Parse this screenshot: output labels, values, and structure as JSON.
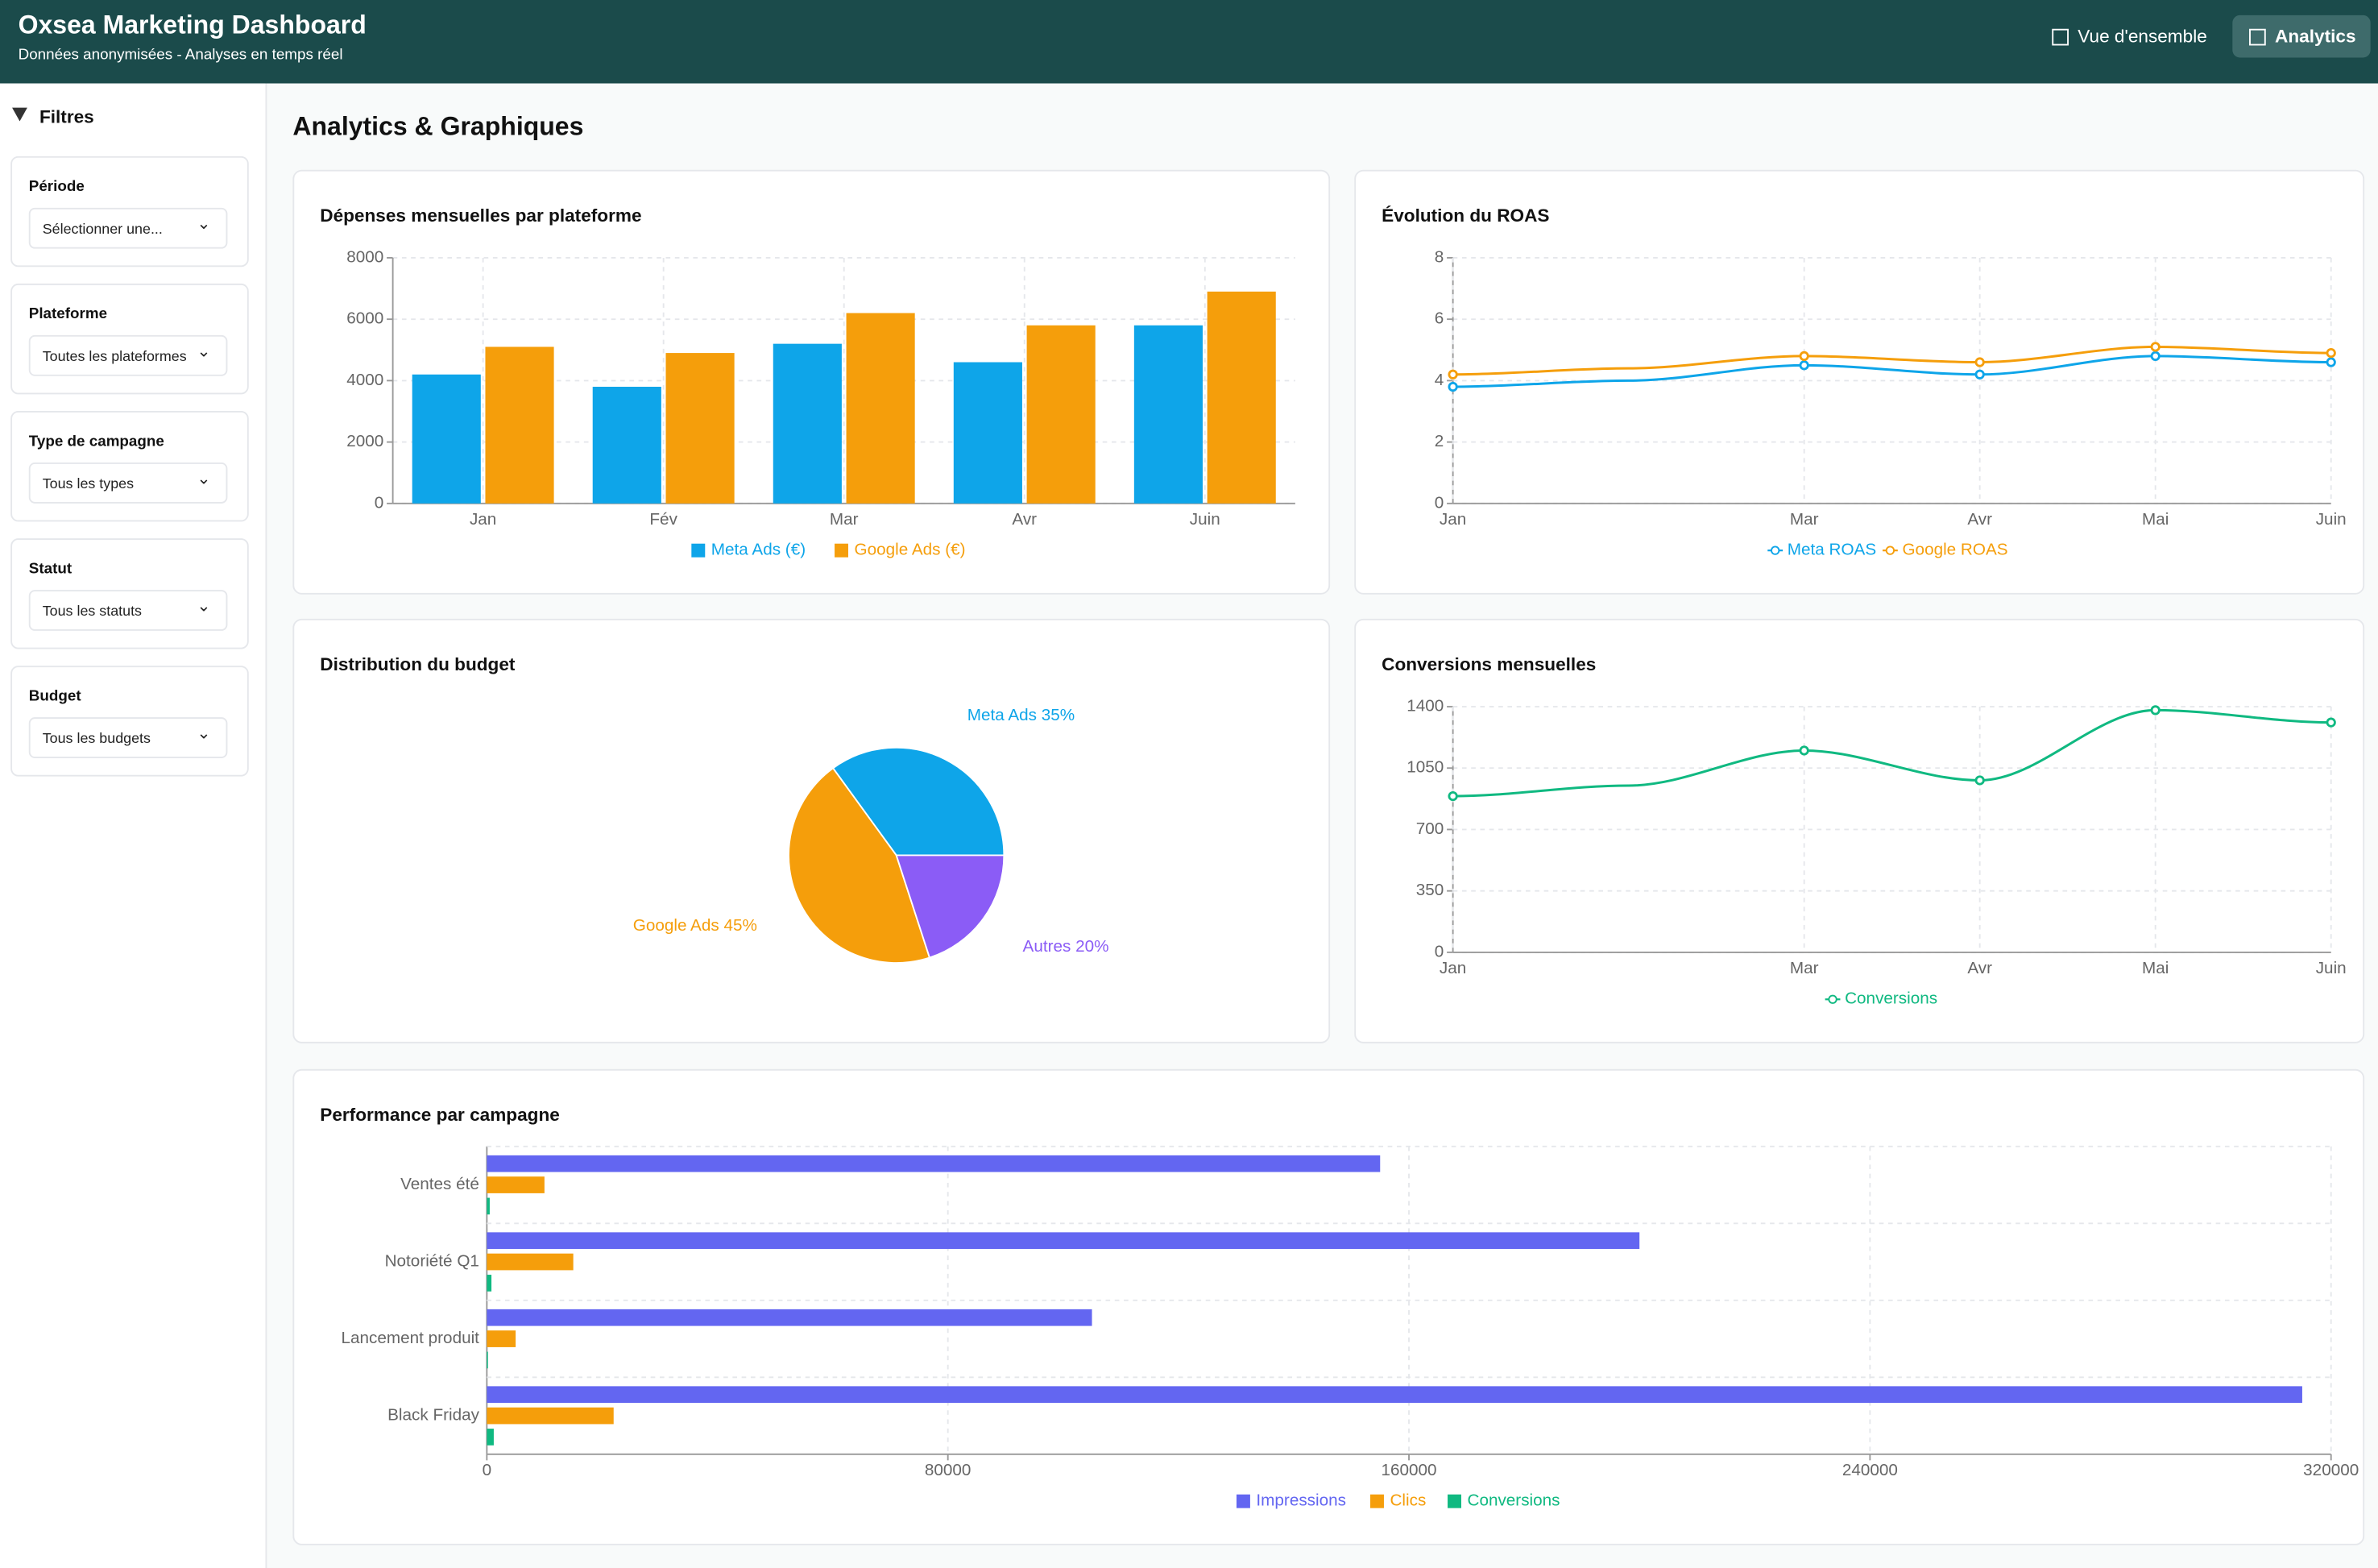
{
  "header": {
    "title": "Oxsea Marketing Dashboard",
    "subtitle": "Données anonymisées - Analyses en temps réel",
    "tabs": [
      "Vue d'ensemble",
      "Analytics"
    ]
  },
  "sidebar": {
    "title": "Filtres",
    "filters": [
      {
        "label": "Période",
        "value": "Sélectionner une..."
      },
      {
        "label": "Plateforme",
        "value": "Toutes les plateformes"
      },
      {
        "label": "Type de campagne",
        "value": "Tous les types"
      },
      {
        "label": "Statut",
        "value": "Tous les statuts"
      },
      {
        "label": "Budget",
        "value": "Tous les budgets"
      }
    ]
  },
  "page_title": "Analytics & Graphiques",
  "chart_data": [
    {
      "type": "bar",
      "title": "Dépenses mensuelles par plateforme",
      "categories": [
        "Jan",
        "Fév",
        "Mar",
        "Avr",
        "Juin"
      ],
      "series": [
        {
          "name": "Meta Ads (€)",
          "color": "#0ea5e9",
          "values": [
            4200,
            3800,
            5200,
            4600,
            5800
          ]
        },
        {
          "name": "Google Ads (€)",
          "color": "#f59e0b",
          "values": [
            5100,
            4900,
            6200,
            5800,
            6900
          ]
        }
      ],
      "ylim": [
        0,
        8000
      ],
      "yticks": [
        0,
        2000,
        4000,
        6000,
        8000
      ],
      "grid": true
    },
    {
      "type": "line",
      "title": "Évolution du ROAS",
      "categories": [
        "Jan",
        null,
        "Mar",
        "Avr",
        "Mai",
        "Juin"
      ],
      "series": [
        {
          "name": "Meta ROAS",
          "color": "#0ea5e9",
          "values": [
            3.8,
            4.0,
            4.5,
            4.2,
            4.8,
            4.6
          ]
        },
        {
          "name": "Google ROAS",
          "color": "#f59e0b",
          "values": [
            4.2,
            4.4,
            4.8,
            4.6,
            5.1,
            4.9
          ]
        }
      ],
      "ylim": [
        0,
        8
      ],
      "yticks": [
        0,
        2,
        4,
        6,
        8
      ],
      "grid": true
    },
    {
      "type": "pie",
      "title": "Distribution du budget",
      "values": [
        35,
        45,
        20
      ],
      "value_labels": [
        "Meta Ads 35%",
        "Google Ads 45%",
        "Autres 20%"
      ],
      "colors": [
        "#0ea5e9",
        "#f59e0b",
        "#8b5cf6"
      ]
    },
    {
      "type": "line",
      "title": "Conversions mensuelles",
      "categories": [
        "Jan",
        null,
        "Mar",
        "Avr",
        "Mai",
        "Juin"
      ],
      "series": [
        {
          "name": "Conversions",
          "color": "#10b981",
          "values": [
            890,
            950,
            1150,
            980,
            1380,
            1310
          ]
        }
      ],
      "ylim": [
        0,
        1400
      ],
      "yticks": [
        0,
        350,
        700,
        1050,
        1400
      ],
      "grid": true
    },
    {
      "type": "hbar",
      "title": "Performance par campagne",
      "categories": [
        "Ventes été",
        "Notoriété Q1",
        "Lancement produit",
        "Black Friday"
      ],
      "series": [
        {
          "name": "Impressions",
          "color": "#6366f1",
          "values": [
            155000,
            200000,
            105000,
            315000
          ]
        },
        {
          "name": "Clics",
          "color": "#f59e0b",
          "values": [
            10000,
            15000,
            5000,
            22000
          ]
        },
        {
          "name": "Conversions",
          "color": "#10b981",
          "values": [
            500,
            800,
            200,
            1200
          ]
        }
      ],
      "xlim": [
        0,
        320000
      ],
      "xticks": [
        0,
        80000,
        160000,
        240000,
        320000
      ],
      "grid": true
    }
  ]
}
